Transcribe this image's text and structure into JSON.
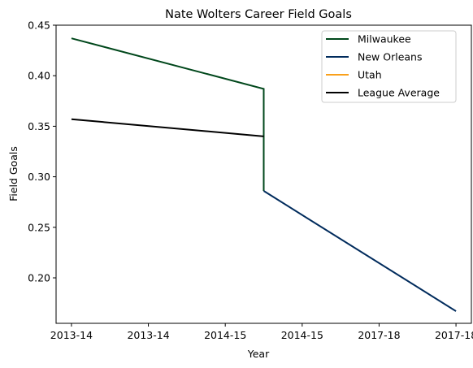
{
  "chart_data": {
    "type": "line",
    "title": "Nate Wolters Career Field Goals",
    "xlabel": "Year",
    "ylabel": "Field Goals",
    "x_tick_labels": [
      "2013-14",
      "2013-14",
      "2014-15",
      "2014-15",
      "2017-18",
      "2017-18"
    ],
    "xlim": [
      -0.16,
      4.16
    ],
    "ylim": [
      0.155,
      0.45
    ],
    "y_ticks": [
      0.2,
      0.25,
      0.3,
      0.35,
      0.4,
      0.45
    ],
    "y_tick_labels": [
      "0.20",
      "0.25",
      "0.30",
      "0.35",
      "0.40",
      "0.45"
    ],
    "grid": false,
    "legend_position": "top-right",
    "series": [
      {
        "name": "Milwaukee",
        "color": "#00471B",
        "points": [
          [
            0,
            0.437
          ],
          [
            2,
            0.387
          ],
          [
            2,
            0.286
          ]
        ]
      },
      {
        "name": "New Orleans",
        "color": "#002B5C",
        "points": [
          [
            2,
            0.286
          ],
          [
            4,
            0.167
          ]
        ]
      },
      {
        "name": "Utah",
        "color": "#F9A01B",
        "points": []
      },
      {
        "name": "League Average",
        "color": "#000000",
        "points": [
          [
            0,
            0.357
          ],
          [
            2,
            0.34
          ]
        ]
      }
    ]
  }
}
